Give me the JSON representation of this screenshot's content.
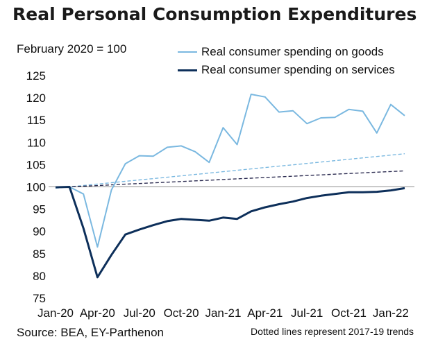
{
  "header": {
    "title": "Real Personal Consumption Expenditures",
    "subtitle": "February 2020 = 100"
  },
  "footer": {
    "source": "Source: BEA, EY-Parthenon",
    "note": "Dotted lines represent 2017-19 trends"
  },
  "chart_data": {
    "type": "line",
    "title": "Real Personal Consumption Expenditures",
    "subtitle": "February 2020 = 100",
    "xlabel": "",
    "ylabel": "",
    "ylim": [
      75,
      125
    ],
    "yticks": [
      75,
      80,
      85,
      90,
      95,
      100,
      105,
      110,
      115,
      120,
      125
    ],
    "x": [
      "Jan-20",
      "Feb-20",
      "Mar-20",
      "Apr-20",
      "May-20",
      "Jun-20",
      "Jul-20",
      "Aug-20",
      "Sep-20",
      "Oct-20",
      "Nov-20",
      "Dec-20",
      "Jan-21",
      "Feb-21",
      "Mar-21",
      "Apr-21",
      "May-21",
      "Jun-21",
      "Jul-21",
      "Aug-21",
      "Sep-21",
      "Oct-21",
      "Nov-21",
      "Dec-21",
      "Jan-22",
      "Feb-22"
    ],
    "xtick_labels": [
      "Jan-20",
      "Apr-20",
      "Jul-20",
      "Oct-20",
      "Jan-21",
      "Apr-21",
      "Jul-21",
      "Oct-21",
      "Jan-22"
    ],
    "xtick_index": [
      0,
      3,
      6,
      9,
      12,
      15,
      18,
      21,
      24
    ],
    "grid": false,
    "legend_position": "top",
    "reference_line": 100,
    "series": [
      {
        "name": "Real consumer spending on goods",
        "color": "#7ab8e0",
        "style": "solid",
        "values": [
          99.9,
          100.0,
          98.4,
          86.5,
          99.3,
          105.2,
          107.0,
          106.9,
          108.9,
          109.2,
          107.9,
          105.5,
          113.3,
          109.5,
          120.8,
          120.2,
          116.8,
          117.1,
          114.2,
          115.5,
          115.6,
          117.4,
          117.0,
          112.1,
          118.5,
          116.0
        ]
      },
      {
        "name": "Real consumer spending on services",
        "color": "#0d2f5a",
        "style": "solid",
        "values": [
          99.9,
          100.0,
          90.7,
          79.7,
          84.7,
          89.3,
          90.4,
          91.4,
          92.3,
          92.8,
          92.6,
          92.4,
          93.1,
          92.8,
          94.5,
          95.4,
          96.1,
          96.7,
          97.5,
          98.0,
          98.4,
          98.8,
          98.8,
          98.9,
          99.2,
          99.7
        ]
      },
      {
        "name": "",
        "color": "#7ab8e0",
        "style": "dashed",
        "values": [
          99.7,
          100.0,
          100.31,
          100.62,
          100.93,
          101.24,
          101.55,
          101.86,
          102.17,
          102.48,
          102.79,
          103.1,
          103.41,
          103.72,
          104.03,
          104.34,
          104.65,
          104.96,
          105.27,
          105.58,
          105.89,
          106.2,
          106.51,
          106.82,
          107.13,
          107.44
        ]
      },
      {
        "name": "",
        "color": "#2b2b50",
        "style": "dashed",
        "values": [
          99.85,
          100.0,
          100.15,
          100.3,
          100.45,
          100.6,
          100.75,
          100.9,
          101.05,
          101.2,
          101.35,
          101.5,
          101.65,
          101.8,
          101.95,
          102.1,
          102.25,
          102.4,
          102.55,
          102.7,
          102.85,
          103.0,
          103.15,
          103.3,
          103.45,
          103.6
        ]
      }
    ]
  }
}
